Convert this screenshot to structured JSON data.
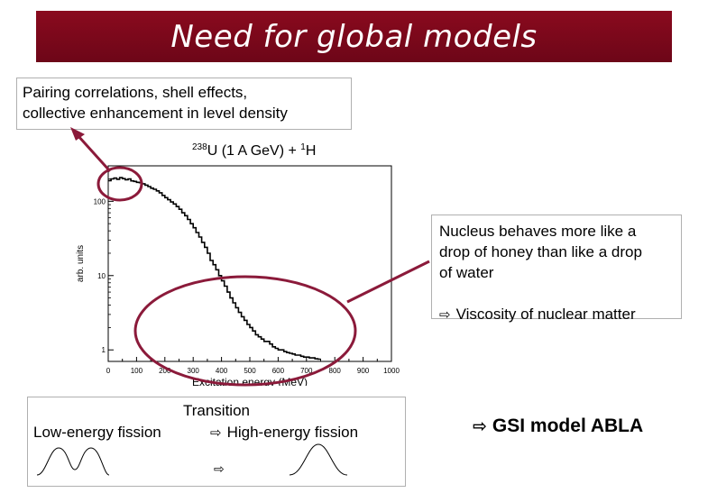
{
  "title": "Need for global models",
  "box1": {
    "line1": "Pairing correlations, shell effects,",
    "line2": "collective enhancement in level density"
  },
  "box2": {
    "line1": "Nucleus behaves more like a",
    "line2": "drop of honey than like a drop",
    "line3": "of water",
    "arrow": "⇨",
    "line4": "Viscosity of nuclear matter"
  },
  "box3": {
    "title": "Transition",
    "low": "Low-energy fission",
    "arrow": "⇨",
    "high": "High-energy fission"
  },
  "gsi": {
    "arrow": "⇨",
    "text": "GSI model ABLA"
  },
  "chart_data": {
    "type": "line",
    "title": "238U (1 A GeV) + 1H",
    "title_main": "U (1 A GeV) + ",
    "title_sup1": "238",
    "title_sup2": "1",
    "title_end": "H",
    "xlabel": "Excitation energy (MeV)",
    "ylabel": "arb. units",
    "xlim": [
      0,
      1000
    ],
    "ylim": [
      0.7,
      300
    ],
    "yscale": "log",
    "xticks": [
      0,
      100,
      200,
      300,
      400,
      500,
      600,
      700,
      800,
      900,
      1000
    ],
    "yticks": [
      {
        "value": 1,
        "label": "1"
      },
      {
        "value": 10,
        "label": "10"
      },
      {
        "value": 100,
        "label": "100"
      }
    ],
    "series": [
      {
        "x": [
          0,
          10,
          20,
          30,
          40,
          50,
          60,
          70,
          80,
          90,
          100,
          110,
          120,
          130,
          140,
          150,
          160,
          170,
          180,
          190,
          200,
          210,
          220,
          230,
          240,
          250,
          260,
          270,
          280,
          290,
          300,
          310,
          320,
          330,
          340,
          350,
          360,
          370,
          380,
          390,
          400,
          410,
          420,
          430,
          440,
          450,
          460,
          470,
          480,
          490,
          500,
          510,
          520,
          530,
          540,
          550,
          560,
          570,
          580,
          590,
          600,
          610,
          620,
          630,
          640,
          650,
          660,
          670,
          680,
          690,
          700,
          710,
          720,
          730,
          740
        ],
        "y": [
          190,
          200,
          205,
          198,
          208,
          202,
          195,
          200,
          188,
          185,
          180,
          178,
          172,
          165,
          158,
          150,
          145,
          138,
          130,
          120,
          112,
          105,
          98,
          92,
          85,
          78,
          70,
          64,
          57,
          50,
          44,
          38,
          33,
          28,
          24,
          20,
          16,
          14,
          12,
          10,
          8.5,
          7.2,
          6,
          5,
          4.3,
          3.7,
          3.2,
          2.8,
          2.5,
          2.2,
          2,
          1.8,
          1.6,
          1.5,
          1.4,
          1.3,
          1.3,
          1.2,
          1.1,
          1.05,
          1,
          1,
          0.95,
          0.92,
          0.9,
          0.88,
          0.85,
          0.85,
          0.82,
          0.8,
          0.8,
          0.78,
          0.78,
          0.76,
          0.75
        ]
      }
    ]
  }
}
